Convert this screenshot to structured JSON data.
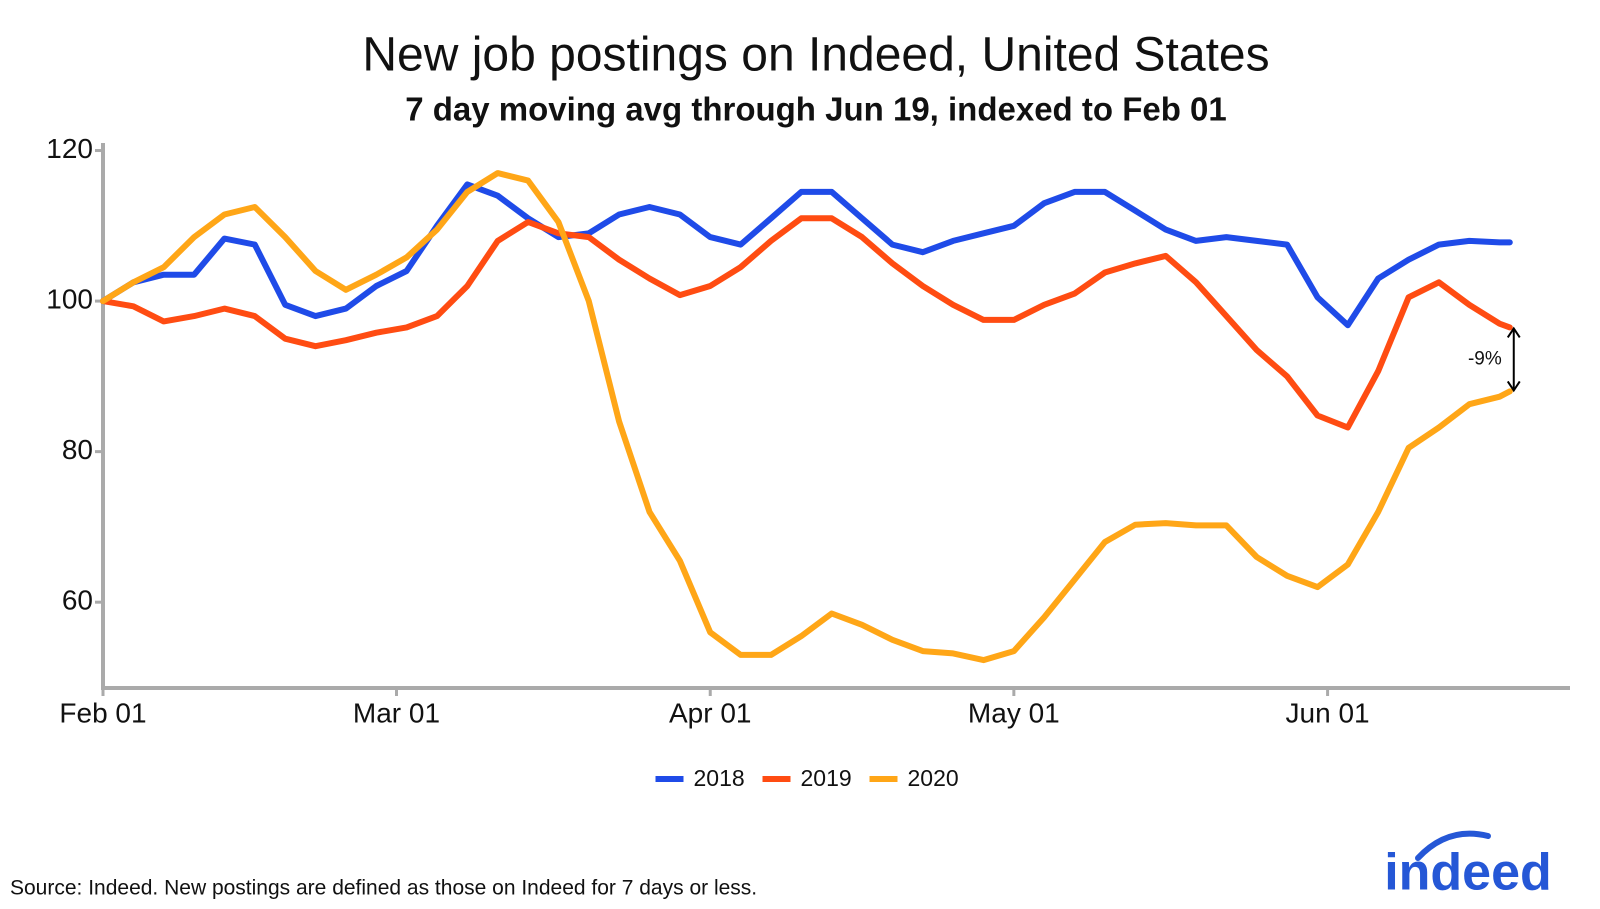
{
  "chart_data": {
    "type": "line",
    "title": "New job postings on Indeed, United States",
    "subtitle": "7 day moving avg through Jun 19, indexed to Feb 01",
    "x": [
      "Feb 01",
      "Feb 04",
      "Feb 07",
      "Feb 10",
      "Feb 13",
      "Feb 16",
      "Feb 19",
      "Feb 22",
      "Feb 25",
      "Feb 28",
      "Mar 02",
      "Mar 05",
      "Mar 08",
      "Mar 11",
      "Mar 14",
      "Mar 17",
      "Mar 20",
      "Mar 23",
      "Mar 26",
      "Mar 29",
      "Apr 01",
      "Apr 04",
      "Apr 07",
      "Apr 10",
      "Apr 13",
      "Apr 16",
      "Apr 19",
      "Apr 22",
      "Apr 25",
      "Apr 28",
      "May 01",
      "May 04",
      "May 07",
      "May 10",
      "May 13",
      "May 16",
      "May 19",
      "May 22",
      "May 25",
      "May 28",
      "May 31",
      "Jun 03",
      "Jun 06",
      "Jun 09",
      "Jun 12",
      "Jun 15",
      "Jun 18",
      "Jun 19"
    ],
    "series": [
      {
        "name": "2018",
        "color": "#1f4be8",
        "values": [
          100,
          102.5,
          103.5,
          103.5,
          108.3,
          107.5,
          99.5,
          98,
          99,
          102,
          104,
          110,
          115.5,
          114,
          111,
          108.5,
          109,
          111.5,
          112.5,
          111.5,
          108.5,
          107.5,
          111,
          114.5,
          114.5,
          111,
          107.5,
          106.5,
          108,
          109,
          110,
          113,
          114.5,
          114.5,
          112,
          109.5,
          108,
          108.5,
          108,
          107.5,
          100.5,
          96.8,
          103,
          105.5,
          107.5,
          108,
          107.8,
          107.8
        ]
      },
      {
        "name": "2019",
        "color": "#ff4c12",
        "values": [
          100,
          99.3,
          97.3,
          98,
          99,
          98,
          95,
          94,
          94.8,
          95.8,
          96.5,
          98,
          102,
          108,
          110.5,
          109,
          108.5,
          105.5,
          103,
          100.8,
          102,
          104.5,
          108,
          111,
          111,
          108.5,
          105,
          102,
          99.5,
          97.5,
          97.5,
          99.5,
          101,
          103.8,
          105,
          106,
          102.5,
          98,
          93.5,
          90,
          84.8,
          83.2,
          90.7,
          100.5,
          102.5,
          99.5,
          97,
          96.5
        ]
      },
      {
        "name": "2020",
        "color": "#ffa617",
        "values": [
          100,
          102.5,
          104.5,
          108.5,
          111.5,
          112.5,
          108.5,
          104,
          101.5,
          103.5,
          105.8,
          109.5,
          114.5,
          117,
          116,
          110.5,
          100,
          84,
          72,
          65.5,
          56,
          53,
          53,
          55.5,
          58.5,
          57,
          55,
          53.5,
          53.2,
          52.3,
          53.5,
          58,
          63,
          68,
          70.3,
          70.5,
          70.2,
          70.2,
          66,
          63.5,
          62,
          65,
          72,
          80.5,
          83.2,
          86.3,
          87.3,
          88
        ]
      }
    ],
    "xlim": [
      "Feb 01",
      "Jun 21"
    ],
    "xticks": [
      "Feb 01",
      "Mar 01",
      "Apr 01",
      "May 01",
      "Jun 01"
    ],
    "ylim": [
      48.6,
      121
    ],
    "yticks": [
      60,
      80,
      100,
      120
    ],
    "annotation": "-9%",
    "source": "Source: Indeed. New postings are defined as those on Indeed for 7 days or less.",
    "logo": "indeed"
  }
}
